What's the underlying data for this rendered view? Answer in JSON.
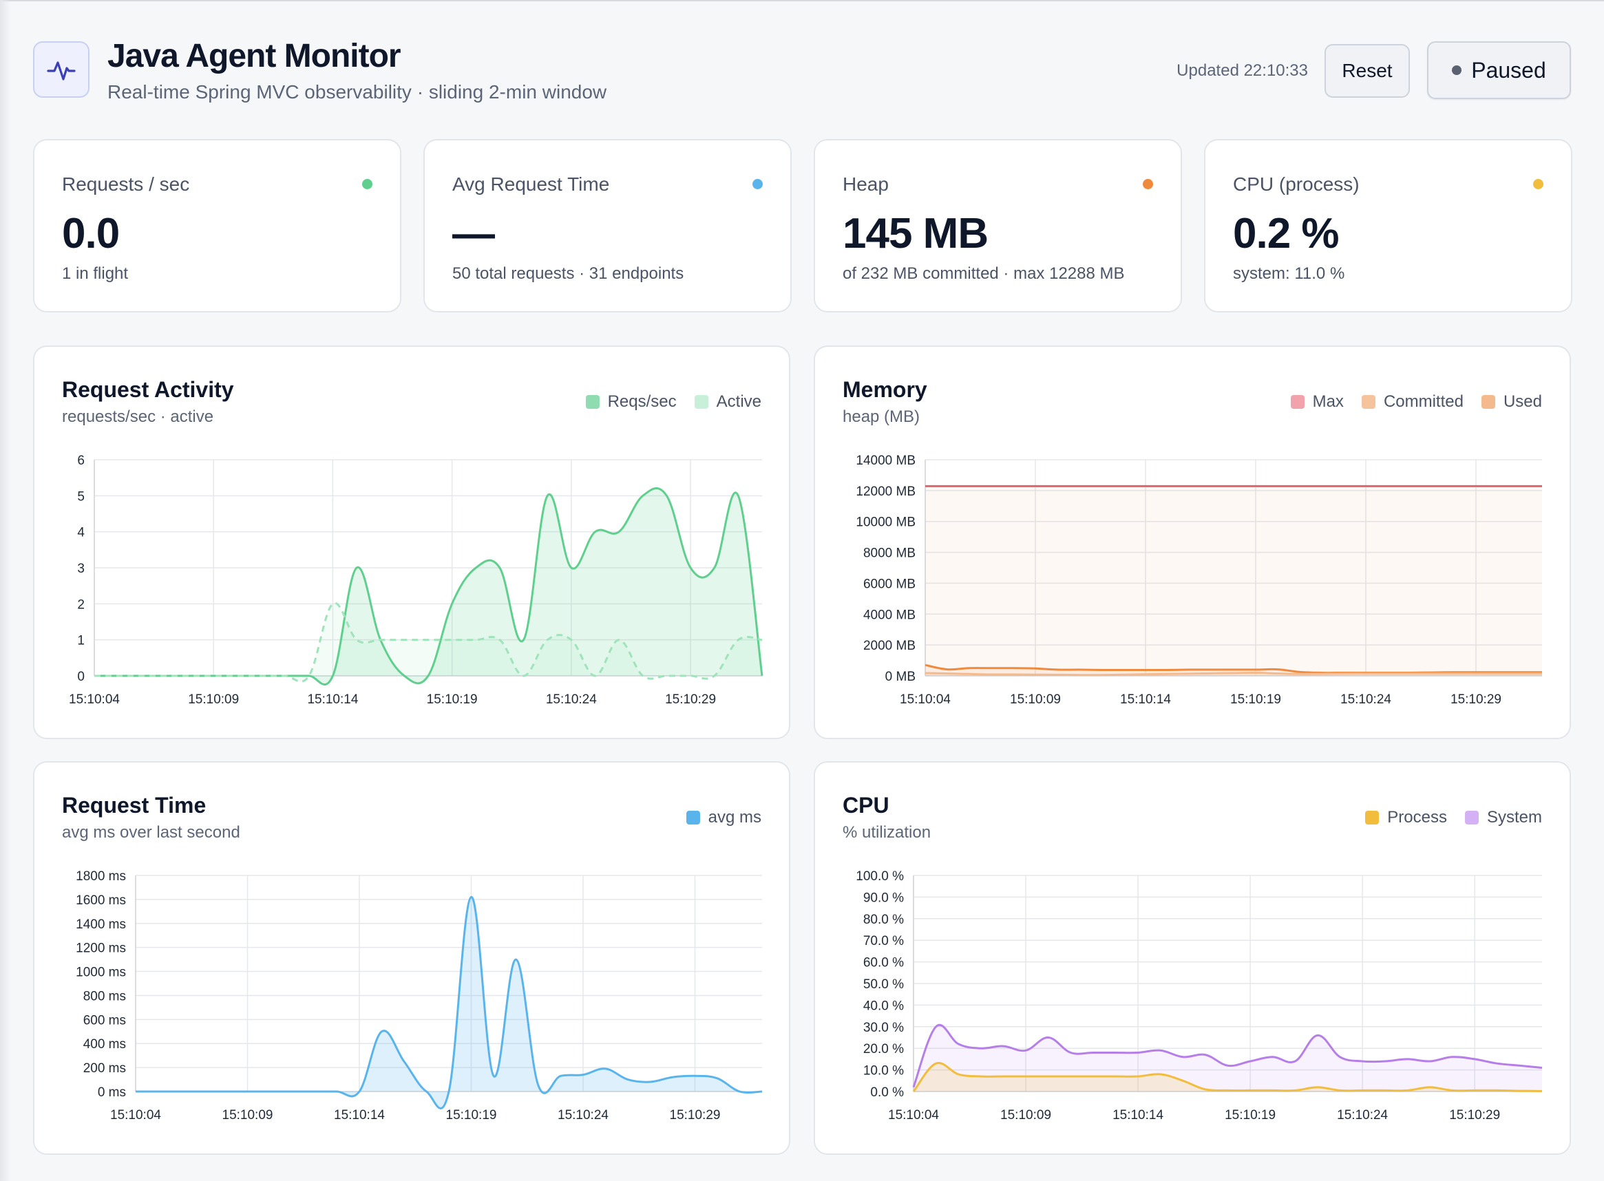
{
  "app": {
    "title": "Java Agent Monitor",
    "subtitle": "Real-time Spring MVC observability · sliding 2-min window",
    "updated": "Updated 22:10:33",
    "reset_label": "Reset",
    "paused_label": "Paused",
    "logo_icon": "activity-pulse-icon"
  },
  "stats": [
    {
      "label": "Requests / sec",
      "value": "0.0",
      "sub": "1 in flight",
      "color": "#5fcf8e"
    },
    {
      "label": "Avg Request Time",
      "value": "—",
      "sub": "50 total requests · 31 endpoints",
      "color": "#5ab4ec"
    },
    {
      "label": "Heap",
      "value": "145 MB",
      "sub": "of 232 MB committed · max 12288 MB",
      "color": "#ef8a3c"
    },
    {
      "label": "CPU (process)",
      "value": "0.2 %",
      "sub": "system: 11.0 %",
      "color": "#f2bd3c"
    }
  ],
  "chart_data": [
    {
      "id": "activity",
      "type": "area",
      "title": "Request Activity",
      "subtitle": "requests/sec · active",
      "x": [
        "15:10:04",
        "15:10:05",
        "15:10:06",
        "15:10:07",
        "15:10:08",
        "15:10:09",
        "15:10:10",
        "15:10:11",
        "15:10:12",
        "15:10:13",
        "15:10:14",
        "15:10:15",
        "15:10:16",
        "15:10:17",
        "15:10:18",
        "15:10:19",
        "15:10:20",
        "15:10:21",
        "15:10:22",
        "15:10:23",
        "15:10:24",
        "15:10:25",
        "15:10:26",
        "15:10:27",
        "15:10:28",
        "15:10:29",
        "15:10:30",
        "15:10:31",
        "15:10:32"
      ],
      "xticks": [
        "15:10:04",
        "15:10:09",
        "15:10:14",
        "15:10:19",
        "15:10:24",
        "15:10:29"
      ],
      "ylim": [
        0,
        6
      ],
      "yticks": [
        0,
        1,
        2,
        3,
        4,
        5,
        6
      ],
      "yunit": "",
      "series": [
        {
          "name": "Reqs/sec",
          "color": "#5fcf8e",
          "fill": "rgba(95,207,142,0.17)",
          "dashed": false,
          "values": [
            0,
            0,
            0,
            0,
            0,
            0,
            0,
            0,
            0,
            0,
            0,
            3,
            1,
            0,
            0,
            2,
            3,
            3,
            1,
            5,
            3,
            4,
            4,
            5,
            5,
            3,
            3,
            5,
            0
          ]
        },
        {
          "name": "Active",
          "color": "#9fe3bb",
          "fill": "rgba(159,227,187,0.12)",
          "dashed": true,
          "values": [
            0,
            0,
            0,
            0,
            0,
            0,
            0,
            0,
            0,
            0,
            2,
            1,
            1,
            1,
            1,
            1,
            1,
            1,
            0,
            1,
            1,
            0,
            1,
            0,
            0,
            0,
            0,
            1,
            1
          ]
        }
      ],
      "legend": [
        {
          "name": "Reqs/sec",
          "color": "#8fdcb0"
        },
        {
          "name": "Active",
          "color": "#c8f0d8"
        }
      ]
    },
    {
      "id": "memory",
      "type": "area",
      "title": "Memory",
      "subtitle": "heap (MB)",
      "x": [
        "15:10:04",
        "15:10:05",
        "15:10:06",
        "15:10:07",
        "15:10:08",
        "15:10:09",
        "15:10:10",
        "15:10:11",
        "15:10:12",
        "15:10:13",
        "15:10:14",
        "15:10:15",
        "15:10:16",
        "15:10:17",
        "15:10:18",
        "15:10:19",
        "15:10:20",
        "15:10:21",
        "15:10:22",
        "15:10:23",
        "15:10:24",
        "15:10:25",
        "15:10:26",
        "15:10:27",
        "15:10:28",
        "15:10:29",
        "15:10:30",
        "15:10:31",
        "15:10:32"
      ],
      "xticks": [
        "15:10:04",
        "15:10:09",
        "15:10:14",
        "15:10:19",
        "15:10:24",
        "15:10:29"
      ],
      "ylim": [
        0,
        14000
      ],
      "yticks": [
        0,
        2000,
        4000,
        6000,
        8000,
        10000,
        12000,
        14000
      ],
      "yunit": " MB",
      "series": [
        {
          "name": "Max",
          "color": "#e06470",
          "fill": "rgba(240,150,120,0.07)",
          "dashed": false,
          "values": [
            12288,
            12288,
            12288,
            12288,
            12288,
            12288,
            12288,
            12288,
            12288,
            12288,
            12288,
            12288,
            12288,
            12288,
            12288,
            12288,
            12288,
            12288,
            12288,
            12288,
            12288,
            12288,
            12288,
            12288,
            12288,
            12288,
            12288,
            12288,
            12288
          ]
        },
        {
          "name": "Committed",
          "color": "#ef8a3c",
          "fill": "rgba(239,138,60,0.10)",
          "dashed": false,
          "values": [
            700,
            420,
            500,
            500,
            500,
            480,
            400,
            400,
            380,
            380,
            380,
            380,
            400,
            400,
            400,
            400,
            420,
            250,
            200,
            200,
            200,
            200,
            200,
            220,
            230,
            232,
            232,
            232,
            232
          ]
        },
        {
          "name": "Used",
          "color": "#f4b98c",
          "fill": "rgba(244,185,140,0.12)",
          "dashed": false,
          "values": [
            180,
            150,
            120,
            90,
            90,
            80,
            70,
            60,
            60,
            80,
            100,
            120,
            140,
            160,
            180,
            200,
            150,
            120,
            130,
            140,
            145,
            145,
            145,
            145,
            145,
            145,
            145,
            145,
            145
          ]
        }
      ],
      "legend": [
        {
          "name": "Max",
          "color": "#f2a2ab"
        },
        {
          "name": "Committed",
          "color": "#f6c49c"
        },
        {
          "name": "Used",
          "color": "#f4b98c"
        }
      ]
    },
    {
      "id": "reqtime",
      "type": "area",
      "title": "Request Time",
      "subtitle": "avg ms over last second",
      "x": [
        "15:10:04",
        "15:10:05",
        "15:10:06",
        "15:10:07",
        "15:10:08",
        "15:10:09",
        "15:10:10",
        "15:10:11",
        "15:10:12",
        "15:10:13",
        "15:10:14",
        "15:10:15",
        "15:10:16",
        "15:10:17",
        "15:10:18",
        "15:10:19",
        "15:10:20",
        "15:10:21",
        "15:10:22",
        "15:10:23",
        "15:10:24",
        "15:10:25",
        "15:10:26",
        "15:10:27",
        "15:10:28",
        "15:10:29",
        "15:10:30",
        "15:10:31",
        "15:10:32"
      ],
      "xticks": [
        "15:10:04",
        "15:10:09",
        "15:10:14",
        "15:10:19",
        "15:10:24",
        "15:10:29"
      ],
      "ylim": [
        0,
        1800
      ],
      "yticks": [
        0,
        200,
        400,
        600,
        800,
        1000,
        1200,
        1400,
        1600,
        1800
      ],
      "yunit": " ms",
      "series": [
        {
          "name": "avg ms",
          "color": "#5ab4ec",
          "fill": "rgba(90,180,236,0.20)",
          "dashed": false,
          "values": [
            0,
            0,
            0,
            0,
            0,
            0,
            0,
            0,
            0,
            0,
            0,
            500,
            250,
            0,
            0,
            1620,
            130,
            1100,
            50,
            130,
            140,
            190,
            100,
            80,
            120,
            130,
            110,
            0,
            0
          ]
        }
      ],
      "legend": [
        {
          "name": "avg ms",
          "color": "#5ab4ec"
        }
      ]
    },
    {
      "id": "cpu",
      "type": "area",
      "title": "CPU",
      "subtitle": "% utilization",
      "x": [
        "15:10:04",
        "15:10:05",
        "15:10:06",
        "15:10:07",
        "15:10:08",
        "15:10:09",
        "15:10:10",
        "15:10:11",
        "15:10:12",
        "15:10:13",
        "15:10:14",
        "15:10:15",
        "15:10:16",
        "15:10:17",
        "15:10:18",
        "15:10:19",
        "15:10:20",
        "15:10:21",
        "15:10:22",
        "15:10:23",
        "15:10:24",
        "15:10:25",
        "15:10:26",
        "15:10:27",
        "15:10:28",
        "15:10:29",
        "15:10:30",
        "15:10:31",
        "15:10:32"
      ],
      "xticks": [
        "15:10:04",
        "15:10:09",
        "15:10:14",
        "15:10:19",
        "15:10:24",
        "15:10:29"
      ],
      "ylim": [
        0,
        100
      ],
      "yticks": [
        0,
        10,
        20,
        30,
        40,
        50,
        60,
        70,
        80,
        90,
        100
      ],
      "ytick_labels": [
        "0.0 %",
        "10.0 %",
        "20.0 %",
        "30.0 %",
        "40.0 %",
        "50.0 %",
        "60.0 %",
        "70.0 %",
        "80.0 %",
        "90.0 %",
        "100.0 %"
      ],
      "yunit": " %",
      "series": [
        {
          "name": "System",
          "color": "#b57ee8",
          "fill": "rgba(181,126,232,0.10)",
          "dashed": false,
          "values": [
            2,
            30,
            22,
            20,
            21,
            19,
            25,
            18,
            18,
            18,
            18,
            19,
            16,
            17,
            12,
            14,
            16,
            14,
            26,
            16,
            14,
            14,
            15,
            14,
            16,
            15,
            13,
            12,
            11
          ]
        },
        {
          "name": "Process",
          "color": "#f2bd3c",
          "fill": "rgba(242,189,60,0.18)",
          "dashed": false,
          "values": [
            0,
            13,
            8,
            7,
            7,
            7,
            7,
            7,
            7,
            7,
            7,
            8,
            5,
            1,
            0.5,
            0.5,
            0.5,
            0.5,
            2,
            0.5,
            0.5,
            0.5,
            0.5,
            2,
            0.5,
            0.5,
            0.5,
            0.3,
            0.2
          ]
        }
      ],
      "legend": [
        {
          "name": "Process",
          "color": "#f2bd3c"
        },
        {
          "name": "System",
          "color": "#d3b1f4"
        }
      ]
    }
  ]
}
